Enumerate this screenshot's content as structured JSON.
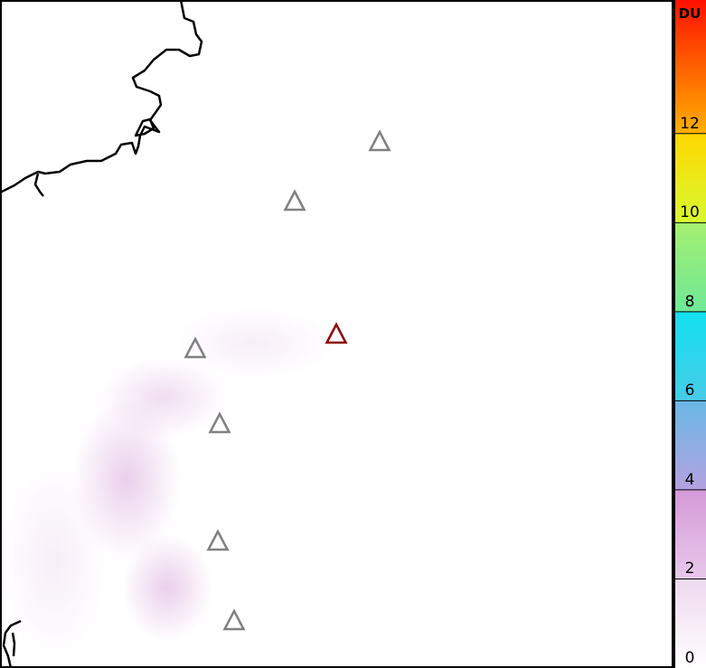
{
  "colorbar": {
    "unit": "DU",
    "ticks": [
      "0",
      "2",
      "4",
      "6",
      "8",
      "10",
      "12"
    ],
    "tick_values": [
      0,
      2,
      4,
      6,
      8,
      10,
      12
    ],
    "range": [
      0,
      15
    ],
    "stops": [
      {
        "value": 0,
        "color": "#ffffff"
      },
      {
        "value": 2,
        "color": "#eed8ee"
      },
      {
        "value": 2.01,
        "color": "#e8c8ea"
      },
      {
        "value": 4,
        "color": "#d49ad8"
      },
      {
        "value": 4.01,
        "color": "#b4a2e0"
      },
      {
        "value": 6,
        "color": "#6ab8e6"
      },
      {
        "value": 6.01,
        "color": "#48cbe8"
      },
      {
        "value": 8,
        "color": "#12e0f0"
      },
      {
        "value": 8.01,
        "color": "#6ee896"
      },
      {
        "value": 10,
        "color": "#a4f070"
      },
      {
        "value": 10.01,
        "color": "#d8f830"
      },
      {
        "value": 12,
        "color": "#ffd800"
      },
      {
        "value": 12.01,
        "color": "#ffb000"
      },
      {
        "value": 15,
        "color": "#ff1000"
      }
    ]
  },
  "map": {
    "volcano_markers": [
      {
        "status": "reference",
        "color": "#808080"
      },
      {
        "status": "reference",
        "color": "#808080"
      },
      {
        "status": "reference",
        "color": "#808080"
      },
      {
        "status": "reference",
        "color": "#808080"
      },
      {
        "status": "reference",
        "color": "#808080"
      },
      {
        "status": "reference",
        "color": "#808080"
      },
      {
        "status": "target",
        "color": "#8b0000"
      }
    ],
    "coastline_color": "#000000",
    "plume_color": "#d8a8dc"
  }
}
